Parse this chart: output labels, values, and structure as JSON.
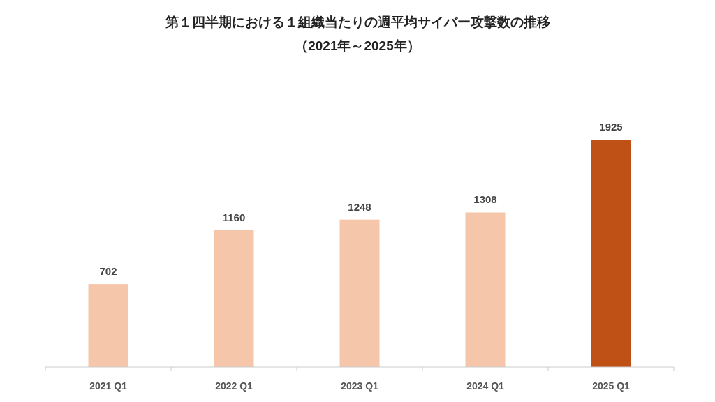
{
  "chart_data": {
    "type": "bar",
    "title": "第１四半期における１組織当たりの週平均サイバー攻撃数の推移",
    "subtitle": "（2021年～2025年）",
    "categories": [
      "2021 Q1",
      "2022 Q1",
      "2023 Q1",
      "2024 Q1",
      "2025 Q1"
    ],
    "values": [
      702,
      1160,
      1248,
      1308,
      1925
    ],
    "colors": [
      "#f5c6aa",
      "#f5c6aa",
      "#f5c6aa",
      "#f5c6aa",
      "#c05116"
    ],
    "data_labels": true
  }
}
